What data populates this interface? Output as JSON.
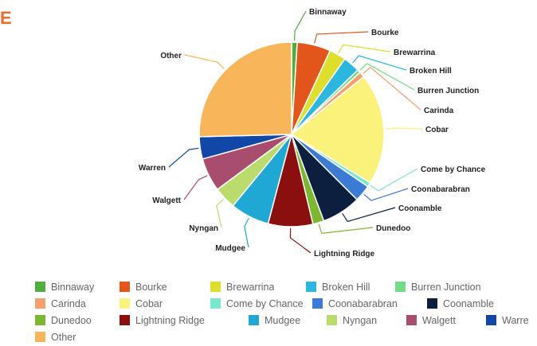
{
  "corner_mark": "E",
  "chart_data": {
    "type": "pie",
    "title": "",
    "slices": [
      {
        "label": "Binnaway",
        "value": 1.0,
        "color": "#4fae3f"
      },
      {
        "label": "Bourke",
        "value": 6.0,
        "color": "#e2561c"
      },
      {
        "label": "Brewarrina",
        "value": 3.0,
        "color": "#dede2c"
      },
      {
        "label": "Broken Hill",
        "value": 3.0,
        "color": "#2cb8de"
      },
      {
        "label": "Burren Junction",
        "value": 0.6,
        "color": "#72dd86"
      },
      {
        "label": "Carinda",
        "value": 1.0,
        "color": "#f6a070"
      },
      {
        "label": "Cobar",
        "value": 20.0,
        "color": "#fbf27c"
      },
      {
        "label": "Come by Chance",
        "value": 0.8,
        "color": "#7ae8cc"
      },
      {
        "label": "Coonabarabran",
        "value": 3.0,
        "color": "#3b7bd6"
      },
      {
        "label": "Coonamble",
        "value": 7.0,
        "color": "#0c1f3f"
      },
      {
        "label": "Dunedoo",
        "value": 2.0,
        "color": "#7bb82f"
      },
      {
        "label": "Lightning Ridge",
        "value": 8.0,
        "color": "#8b0f0f"
      },
      {
        "label": "Mudgee",
        "value": 7.0,
        "color": "#1ea8d3"
      },
      {
        "label": "Nyngan",
        "value": 4.0,
        "color": "#b9dc6c"
      },
      {
        "label": "Walgett",
        "value": 6.0,
        "color": "#a84d6e"
      },
      {
        "label": "Warren",
        "value": 4.0,
        "color": "#1148a7"
      },
      {
        "label": "Other",
        "value": 26.0,
        "color": "#f8b55a"
      }
    ],
    "legend_placement": "bottom"
  },
  "legend": {
    "rows": [
      [
        "Binnaway",
        "Bourke",
        "Brewarrina",
        "Broken Hill",
        "Burren Junction"
      ],
      [
        "Carinda",
        "Cobar",
        "Come by Chance",
        "Coonabarabran",
        "Coonamble"
      ],
      [
        "Dunedoo",
        "Lightning Ridge",
        "Mudgee",
        "Nyngan",
        "Walgett",
        "Warre"
      ],
      [
        "Other"
      ]
    ]
  }
}
